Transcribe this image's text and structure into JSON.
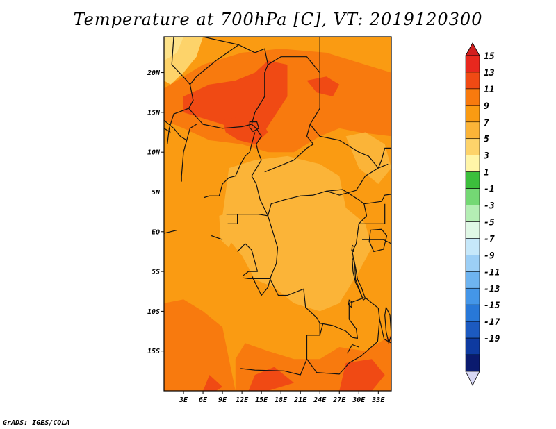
{
  "title": "Temperature at 700hPa [C], VT: 2019120300",
  "credit": "GrADS: IGES/COLA",
  "axes": {
    "lat_ticks": [
      {
        "label": "20N",
        "value": 20
      },
      {
        "label": "15N",
        "value": 15
      },
      {
        "label": "10N",
        "value": 10
      },
      {
        "label": "5N",
        "value": 5
      },
      {
        "label": "EQ",
        "value": 0
      },
      {
        "label": "5S",
        "value": -5
      },
      {
        "label": "10S",
        "value": -10
      },
      {
        "label": "15S",
        "value": -15
      }
    ],
    "lon_ticks": [
      {
        "label": "3E",
        "value": 3
      },
      {
        "label": "6E",
        "value": 6
      },
      {
        "label": "9E",
        "value": 9
      },
      {
        "label": "12E",
        "value": 12
      },
      {
        "label": "15E",
        "value": 15
      },
      {
        "label": "18E",
        "value": 18
      },
      {
        "label": "21E",
        "value": 21
      },
      {
        "label": "24E",
        "value": 24
      },
      {
        "label": "27E",
        "value": 27
      },
      {
        "label": "30E",
        "value": 30
      },
      {
        "label": "33E",
        "value": 33
      }
    ],
    "lon_range": [
      0,
      35
    ],
    "lat_range": [
      -20,
      24.5
    ]
  },
  "colorbar": {
    "levels": [
      {
        "label": "15",
        "color": "#e8281e"
      },
      {
        "label": "13",
        "color": "#f04a14"
      },
      {
        "label": "11",
        "color": "#f87a0e"
      },
      {
        "label": "9",
        "color": "#fa9b12"
      },
      {
        "label": "7",
        "color": "#fbb438"
      },
      {
        "label": "5",
        "color": "#fdd36a"
      },
      {
        "label": "3",
        "color": "#fff5a8"
      },
      {
        "label": "1",
        "color": "#3cbf3c"
      },
      {
        "label": "-1",
        "color": "#74d874"
      },
      {
        "label": "-3",
        "color": "#b4eeb4"
      },
      {
        "label": "-5",
        "color": "#e0f8e6"
      },
      {
        "label": "-7",
        "color": "#c6e8fa"
      },
      {
        "label": "-9",
        "color": "#9ccff6"
      },
      {
        "label": "-11",
        "color": "#6eb4f0"
      },
      {
        "label": "-13",
        "color": "#4496e8"
      },
      {
        "label": "-15",
        "color": "#2878d8"
      },
      {
        "label": "-17",
        "color": "#1c5ac0"
      },
      {
        "label": "-19",
        "color": "#0e3aa0"
      }
    ],
    "top_cap_color": "#d21e1e",
    "bottom_cap_color": "#d8d8f4",
    "extra_band_color": "#0a1a6e"
  },
  "colors": {
    "base_field": "#fa9b12",
    "warm_field": "#f87a0e",
    "hot_field": "#f04a14",
    "cool_field": "#fbb438",
    "coolest_field": "#fdd36a"
  }
}
